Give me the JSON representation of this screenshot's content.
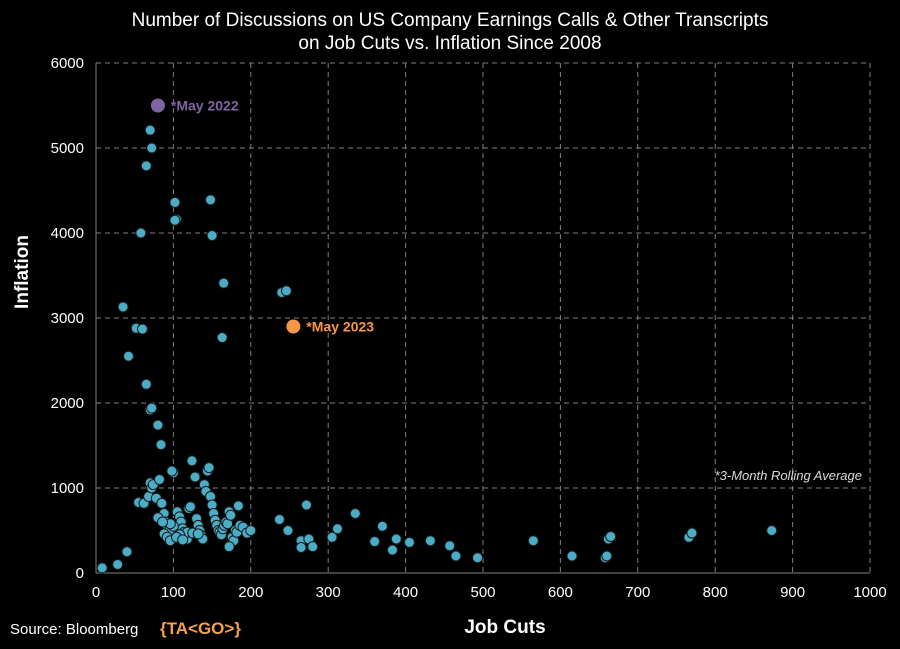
{
  "source": "Source: Bloomberg",
  "logo": "{TA<GO>}",
  "chart_data": {
    "type": "scatter",
    "title": [
      "Number of Discussions on US Company Earnings Calls & Other Transcripts",
      "on Job Cuts vs. Inflation Since 2008"
    ],
    "xlabel": "Job Cuts",
    "ylabel": "Inflation",
    "xlim": [
      0,
      1000
    ],
    "ylim": [
      0,
      6000
    ],
    "xticks": [
      0,
      100,
      200,
      300,
      400,
      500,
      600,
      700,
      800,
      900,
      1000
    ],
    "yticks": [
      0,
      1000,
      2000,
      3000,
      4000,
      5000,
      6000
    ],
    "grid": true,
    "note": "*3-Month Rolling Average",
    "colors": {
      "points": "#4bacc6",
      "may2022": "#8064a2",
      "may2023": "#f79646",
      "grid": "#7f7f7f"
    },
    "highlights": [
      {
        "label": "*May 2022",
        "x": 80,
        "y": 5500,
        "color": "#8064a2"
      },
      {
        "label": "*May 2023",
        "x": 255,
        "y": 2900,
        "color": "#f79646"
      }
    ],
    "series": [
      {
        "values": [
          [
            8,
            60
          ],
          [
            28,
            100
          ],
          [
            40,
            250
          ],
          [
            35,
            3130
          ],
          [
            52,
            2880
          ],
          [
            60,
            2870
          ],
          [
            42,
            2550
          ],
          [
            65,
            2220
          ],
          [
            70,
            1920
          ],
          [
            72,
            1940
          ],
          [
            80,
            1740
          ],
          [
            84,
            1510
          ],
          [
            58,
            4000
          ],
          [
            65,
            4790
          ],
          [
            72,
            5000
          ],
          [
            70,
            5210
          ],
          [
            102,
            4360
          ],
          [
            104,
            4160
          ],
          [
            102,
            4150
          ],
          [
            148,
            4390
          ],
          [
            150,
            3970
          ],
          [
            165,
            3410
          ],
          [
            163,
            2770
          ],
          [
            240,
            3300
          ],
          [
            246,
            3320
          ],
          [
            55,
            830
          ],
          [
            62,
            820
          ],
          [
            68,
            900
          ],
          [
            70,
            1060
          ],
          [
            72,
            1000
          ],
          [
            74,
            1040
          ],
          [
            78,
            880
          ],
          [
            82,
            1100
          ],
          [
            85,
            820
          ],
          [
            88,
            700
          ],
          [
            80,
            650
          ],
          [
            90,
            600
          ],
          [
            92,
            560
          ],
          [
            95,
            500
          ],
          [
            88,
            460
          ],
          [
            92,
            420
          ],
          [
            96,
            380
          ],
          [
            100,
            1180
          ],
          [
            98,
            1200
          ],
          [
            105,
            720
          ],
          [
            108,
            660
          ],
          [
            110,
            600
          ],
          [
            112,
            520
          ],
          [
            114,
            480
          ],
          [
            116,
            430
          ],
          [
            118,
            400
          ],
          [
            120,
            760
          ],
          [
            122,
            780
          ],
          [
            124,
            1320
          ],
          [
            128,
            1130
          ],
          [
            130,
            640
          ],
          [
            132,
            560
          ],
          [
            134,
            500
          ],
          [
            136,
            440
          ],
          [
            138,
            400
          ],
          [
            140,
            1040
          ],
          [
            142,
            960
          ],
          [
            144,
            1200
          ],
          [
            146,
            1240
          ],
          [
            148,
            900
          ],
          [
            150,
            800
          ],
          [
            152,
            700
          ],
          [
            154,
            620
          ],
          [
            156,
            560
          ],
          [
            158,
            500
          ],
          [
            160,
            480
          ],
          [
            162,
            450
          ],
          [
            164,
            520
          ],
          [
            166,
            560
          ],
          [
            168,
            600
          ],
          [
            170,
            580
          ],
          [
            172,
            720
          ],
          [
            174,
            680
          ],
          [
            176,
            420
          ],
          [
            178,
            380
          ],
          [
            180,
            500
          ],
          [
            182,
            480
          ],
          [
            184,
            790
          ],
          [
            186,
            560
          ],
          [
            190,
            540
          ],
          [
            195,
            470
          ],
          [
            200,
            500
          ],
          [
            172,
            310
          ],
          [
            118,
            480
          ],
          [
            125,
            470
          ],
          [
            132,
            460
          ],
          [
            108,
            450
          ],
          [
            100,
            550
          ],
          [
            96,
            580
          ],
          [
            86,
            600
          ],
          [
            104,
            420
          ],
          [
            112,
            390
          ],
          [
            237,
            630
          ],
          [
            248,
            500
          ],
          [
            265,
            380
          ],
          [
            265,
            300
          ],
          [
            275,
            400
          ],
          [
            272,
            800
          ],
          [
            280,
            310
          ],
          [
            305,
            420
          ],
          [
            312,
            520
          ],
          [
            335,
            700
          ],
          [
            360,
            370
          ],
          [
            370,
            550
          ],
          [
            383,
            270
          ],
          [
            388,
            400
          ],
          [
            405,
            360
          ],
          [
            432,
            380
          ],
          [
            457,
            320
          ],
          [
            465,
            200
          ],
          [
            493,
            180
          ],
          [
            565,
            380
          ],
          [
            615,
            200
          ],
          [
            658,
            180
          ],
          [
            660,
            200
          ],
          [
            662,
            400
          ],
          [
            665,
            430
          ],
          [
            766,
            420
          ],
          [
            770,
            470
          ],
          [
            873,
            500
          ]
        ]
      }
    ]
  }
}
